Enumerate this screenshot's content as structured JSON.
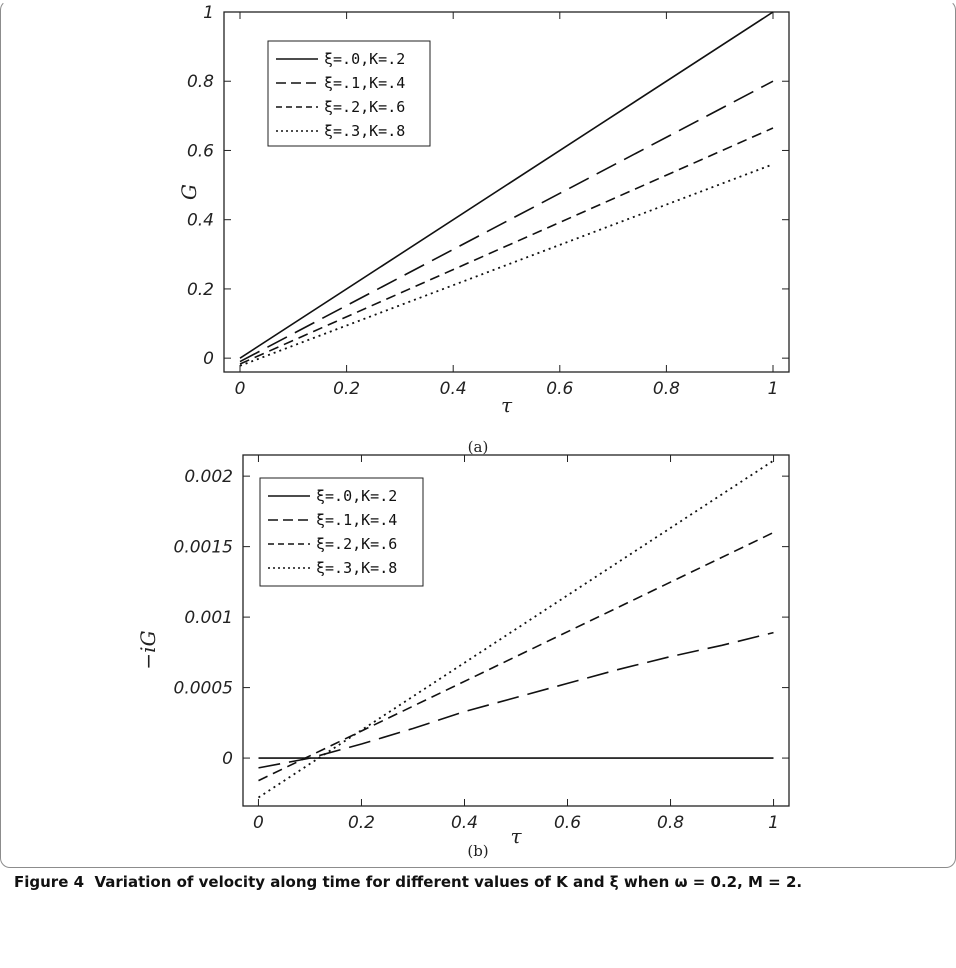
{
  "caption": {
    "label": "Figure 4",
    "text": "Variation of velocity along time for different values of K and ξ when ω = 0.2, M = 2."
  },
  "chart_data": [
    {
      "type": "line",
      "sublabel": "(a)",
      "xlabel": "τ",
      "ylabel": "G",
      "xlim": [
        -0.03,
        1.03
      ],
      "ylim": [
        -0.04,
        1.0
      ],
      "xticks": [
        0,
        0.2,
        0.4,
        0.6,
        0.8,
        1
      ],
      "xtick_labels": [
        "0",
        "0.2",
        "0.4",
        "0.6",
        "0.8",
        "1"
      ],
      "yticks": [
        0,
        0.2,
        0.4,
        0.6,
        0.8,
        1
      ],
      "ytick_labels": [
        "0",
        "0.2",
        "0.4",
        "0.6",
        "0.8",
        "1"
      ],
      "legend_position": "top-left",
      "series": [
        {
          "name": "ξ=.0,K=.2",
          "style": "solid",
          "x": [
            0,
            1
          ],
          "y": [
            0.0,
            1.0
          ]
        },
        {
          "name": "ξ=.1,K=.4",
          "style": "long-dash",
          "x": [
            0,
            1
          ],
          "y": [
            -0.01,
            0.8
          ]
        },
        {
          "name": "ξ=.2,K=.6",
          "style": "short-dash",
          "x": [
            0,
            1
          ],
          "y": [
            -0.017,
            0.665
          ]
        },
        {
          "name": "ξ=.3,K=.8",
          "style": "dotted",
          "x": [
            0,
            1
          ],
          "y": [
            -0.022,
            0.56
          ]
        }
      ]
    },
    {
      "type": "line",
      "sublabel": "(b)",
      "xlabel": "τ",
      "ylabel": "−iG",
      "xlim": [
        -0.03,
        1.03
      ],
      "ylim": [
        -0.00034,
        0.00215
      ],
      "xticks": [
        0,
        0.2,
        0.4,
        0.6,
        0.8,
        1
      ],
      "xtick_labels": [
        "0",
        "0.2",
        "0.4",
        "0.6",
        "0.8",
        "1"
      ],
      "yticks": [
        0,
        0.0005,
        0.001,
        0.0015,
        0.002
      ],
      "ytick_labels": [
        "0",
        "0.0005",
        "0.001",
        "0.0015",
        "0.002"
      ],
      "legend_position": "top-left",
      "series": [
        {
          "name": "ξ=.0,K=.2",
          "style": "solid",
          "x": [
            0,
            1
          ],
          "y": [
            0.0,
            0.0
          ]
        },
        {
          "name": "ξ=.1,K=.4",
          "style": "long-dash",
          "x": [
            0,
            0.1,
            0.2,
            0.3,
            0.4,
            0.5,
            0.6,
            0.7,
            0.8,
            0.9,
            1.0
          ],
          "y": [
            -7e-05,
            0.0,
            0.0001,
            0.00021,
            0.00033,
            0.00043,
            0.00053,
            0.00063,
            0.00072,
            0.0008,
            0.00089
          ]
        },
        {
          "name": "ξ=.2,K=.6",
          "style": "short-dash",
          "x": [
            0,
            1
          ],
          "y": [
            -0.00016,
            0.0016
          ]
        },
        {
          "name": "ξ=.3,K=.8",
          "style": "dotted",
          "x": [
            0,
            1
          ],
          "y": [
            -0.00028,
            0.00211
          ]
        }
      ]
    }
  ]
}
